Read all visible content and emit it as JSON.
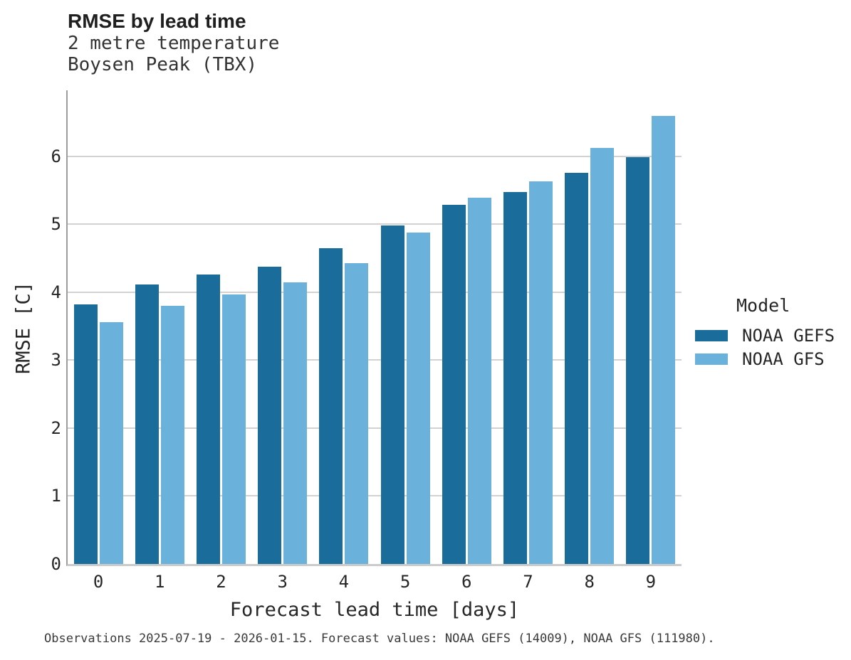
{
  "header": {
    "title": "RMSE by lead time",
    "subtitle_line1": "2 metre temperature",
    "subtitle_line2": "Boysen Peak (TBX)"
  },
  "legend": {
    "title": "Model"
  },
  "caption": "Observations 2025-07-19 - 2026-01-15. Forecast values: NOAA GEFS (14009), NOAA GFS (111980).",
  "colors": {
    "gefs": "#1a6c9b",
    "gfs": "#6ab1db",
    "grid": "#d2d2d2",
    "axis_spine": "#9c9c9c",
    "baseline": "#cbcbcb",
    "text": "#262626"
  },
  "chart_data": {
    "type": "bar",
    "title": "RMSE by lead time",
    "subtitle": [
      "2 metre temperature",
      "Boysen Peak (TBX)"
    ],
    "categories": [
      "0",
      "1",
      "2",
      "3",
      "4",
      "5",
      "6",
      "7",
      "8",
      "9"
    ],
    "series": [
      {
        "name": "NOAA GEFS",
        "color": "#1a6c9b",
        "values": [
          3.82,
          4.11,
          4.26,
          4.37,
          4.65,
          4.98,
          5.28,
          5.47,
          5.76,
          5.99
        ]
      },
      {
        "name": "NOAA GFS",
        "color": "#6ab1db",
        "values": [
          3.56,
          3.8,
          3.97,
          4.14,
          4.43,
          4.88,
          5.39,
          5.63,
          6.12,
          6.59
        ]
      }
    ],
    "xlabel": "Forecast lead time [days]",
    "ylabel": "RMSE [C]",
    "ylim": [
      0,
      6.97
    ],
    "yticks": [
      0,
      1,
      2,
      3,
      4,
      5,
      6
    ],
    "grid": "horizontal",
    "legend_position": "right",
    "legend_title": "Model"
  }
}
